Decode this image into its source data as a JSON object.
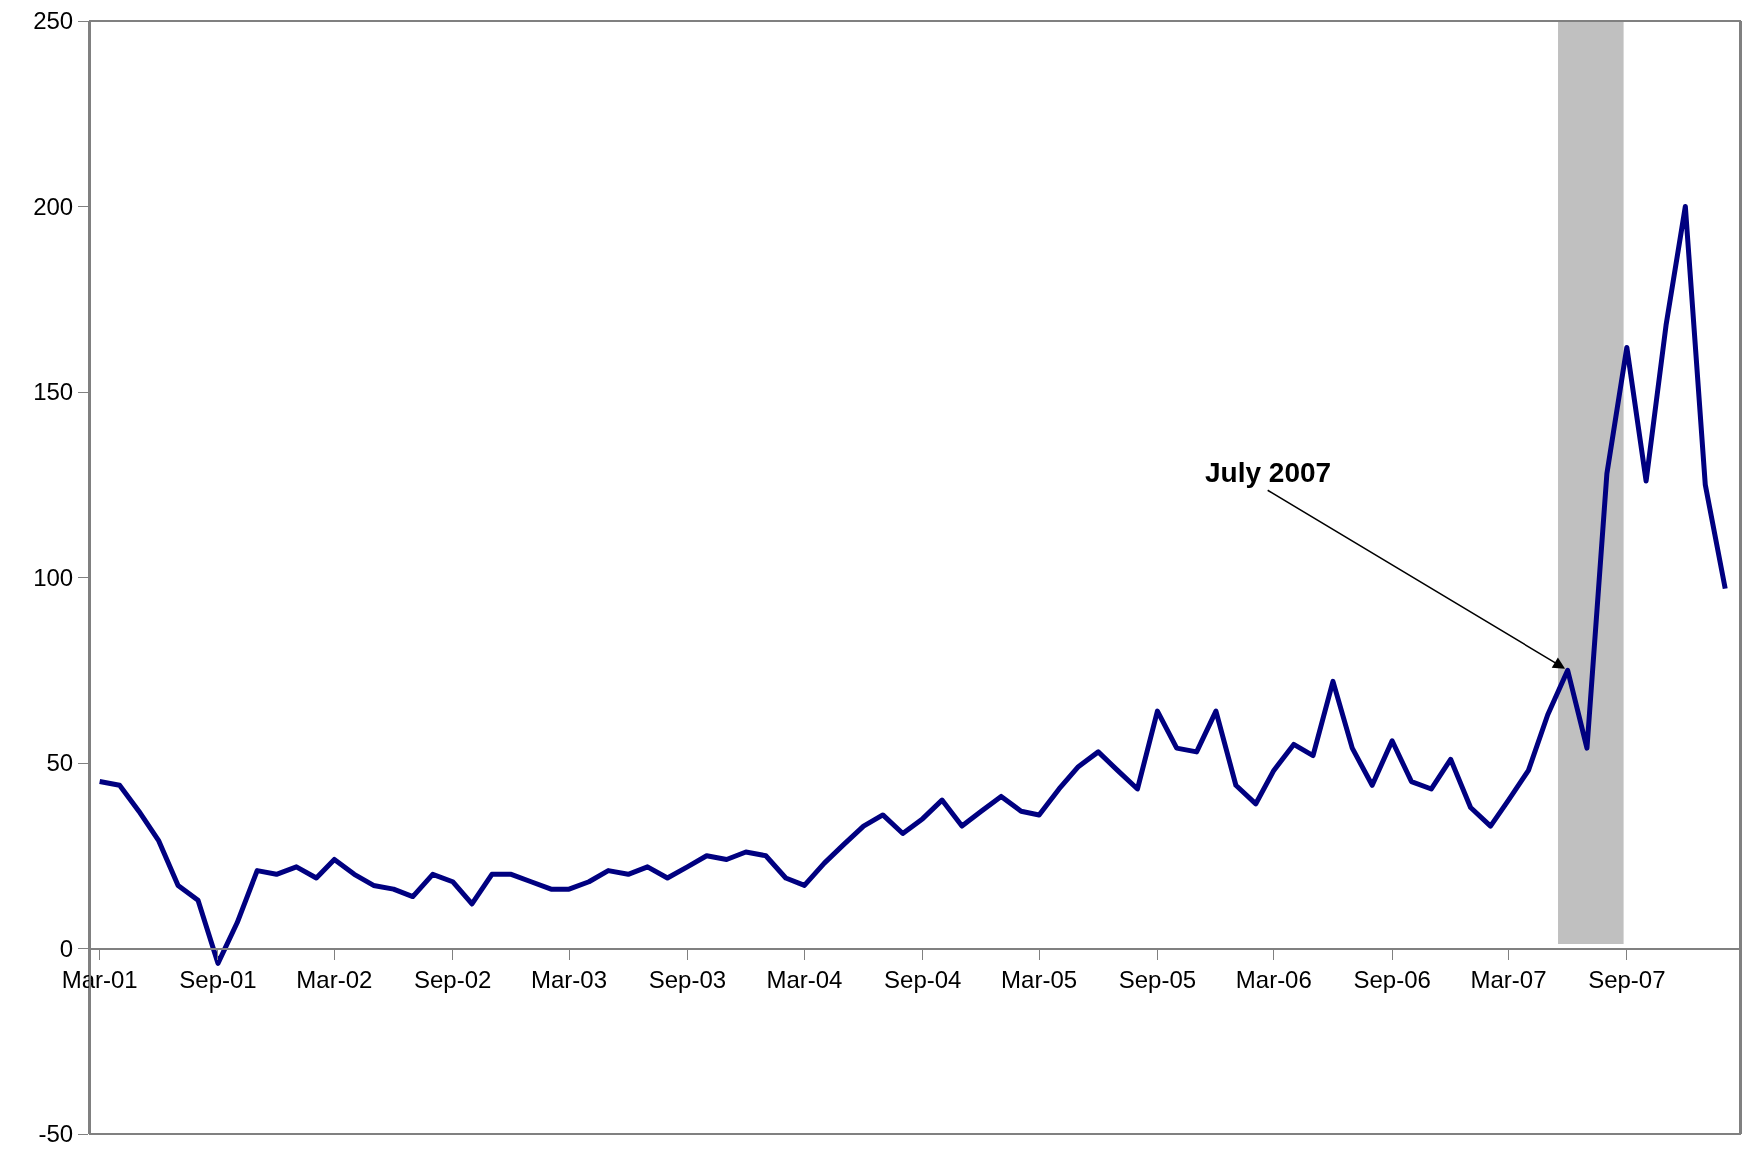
{
  "chart_data": {
    "type": "line",
    "x": [
      "2001-03",
      "2001-04",
      "2001-05",
      "2001-06",
      "2001-07",
      "2001-08",
      "2001-09",
      "2001-10",
      "2001-11",
      "2001-12",
      "2002-01",
      "2002-02",
      "2002-03",
      "2002-04",
      "2002-05",
      "2002-06",
      "2002-07",
      "2002-08",
      "2002-09",
      "2002-10",
      "2002-11",
      "2002-12",
      "2003-01",
      "2003-02",
      "2003-03",
      "2003-04",
      "2003-05",
      "2003-06",
      "2003-07",
      "2003-08",
      "2003-09",
      "2003-10",
      "2003-11",
      "2003-12",
      "2004-01",
      "2004-02",
      "2004-03",
      "2004-04",
      "2004-05",
      "2004-06",
      "2004-07",
      "2004-08",
      "2004-09",
      "2004-10",
      "2004-11",
      "2004-12",
      "2005-01",
      "2005-02",
      "2005-03",
      "2005-04",
      "2005-05",
      "2005-06",
      "2005-07",
      "2005-08",
      "2005-09",
      "2005-10",
      "2005-11",
      "2005-12",
      "2006-01",
      "2006-02",
      "2006-03",
      "2006-04",
      "2006-05",
      "2006-06",
      "2006-07",
      "2006-08",
      "2006-09",
      "2006-10",
      "2006-11",
      "2006-12",
      "2007-01",
      "2007-02",
      "2007-03",
      "2007-04",
      "2007-05",
      "2007-06",
      "2007-07",
      "2007-08",
      "2007-09",
      "2007-10",
      "2007-11",
      "2007-12",
      "2008-01",
      "2008-02"
    ],
    "series": [
      {
        "color": "#000080",
        "values": [
          45,
          44,
          37,
          29,
          17,
          13,
          -4,
          7,
          21,
          20,
          22,
          19,
          24,
          20,
          17,
          16,
          14,
          20,
          18,
          12,
          20,
          20,
          18,
          16,
          16,
          18,
          21,
          20,
          22,
          19,
          22,
          25,
          24,
          26,
          25,
          19,
          17,
          23,
          28,
          33,
          36,
          31,
          35,
          40,
          33,
          37,
          41,
          37,
          36,
          43,
          49,
          53,
          48,
          43,
          64,
          54,
          53,
          64,
          44,
          39,
          48,
          55,
          52,
          72,
          54,
          44,
          56,
          45,
          43,
          51,
          38,
          33,
          40,
          48,
          63,
          75,
          54,
          128,
          162,
          126,
          168,
          200,
          125,
          97
        ]
      }
    ],
    "xlim": [
      "2001-02-14",
      "2008-02-24"
    ],
    "xticks": [
      {
        "value": "2001-03",
        "label": "Mar-01"
      },
      {
        "value": "2001-09",
        "label": "Sep-01"
      },
      {
        "value": "2002-03",
        "label": "Mar-02"
      },
      {
        "value": "2002-09",
        "label": "Sep-02"
      },
      {
        "value": "2003-03",
        "label": "Mar-03"
      },
      {
        "value": "2003-09",
        "label": "Sep-03"
      },
      {
        "value": "2004-03",
        "label": "Mar-04"
      },
      {
        "value": "2004-09",
        "label": "Sep-04"
      },
      {
        "value": "2005-03",
        "label": "Mar-05"
      },
      {
        "value": "2005-09",
        "label": "Sep-05"
      },
      {
        "value": "2006-03",
        "label": "Mar-06"
      },
      {
        "value": "2006-09",
        "label": "Sep-06"
      },
      {
        "value": "2007-03",
        "label": "Mar-07"
      },
      {
        "value": "2007-09",
        "label": "Sep-07"
      }
    ],
    "ylim": [
      -50,
      250
    ],
    "yticks": [
      -50,
      0,
      50,
      100,
      150,
      200,
      250
    ],
    "bands": [
      {
        "axis": "x",
        "from": "2007-05-17",
        "to": "2007-08-27",
        "color": "#c0c0c0"
      }
    ],
    "annotations": [
      {
        "text": "July 2007",
        "x": "2007-06",
        "y": 75
      }
    ],
    "grid": false,
    "marker": "none",
    "line_style": "solid"
  }
}
